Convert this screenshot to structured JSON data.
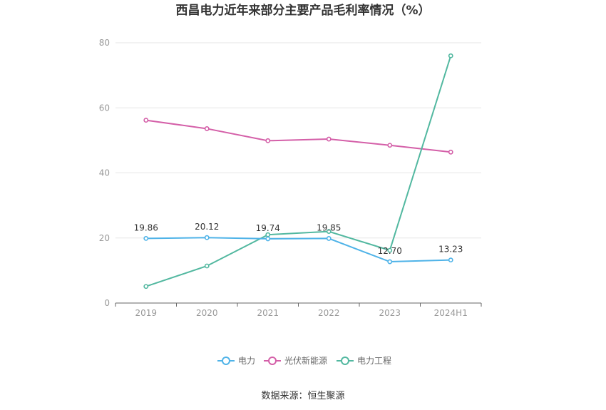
{
  "chart_data": {
    "type": "line",
    "title": "西昌电力近年来部分主要产品毛利率情况（%）",
    "categories": [
      "2019",
      "2020",
      "2021",
      "2022",
      "2023",
      "2024H1"
    ],
    "ylim": [
      0,
      80
    ],
    "yticks": [
      0,
      20,
      40,
      60,
      80
    ],
    "grid": true,
    "legend_position": "bottom-center",
    "series": [
      {
        "name": "电力",
        "color": "#4fb3e8",
        "values": [
          19.86,
          20.12,
          19.74,
          19.85,
          12.7,
          13.23
        ],
        "labels": [
          "19.86",
          "20.12",
          "19.74",
          "19.85",
          "12.70",
          "13.23"
        ]
      },
      {
        "name": "光伏新能源",
        "color": "#d45fa8",
        "values": [
          56.2,
          53.6,
          49.9,
          50.4,
          48.5,
          46.4
        ]
      },
      {
        "name": "电力工程",
        "color": "#52b8a0",
        "values": [
          5.1,
          11.4,
          21.0,
          22.0,
          16.2,
          76.0
        ]
      }
    ]
  },
  "source_text": "数据来源：恒生聚源"
}
